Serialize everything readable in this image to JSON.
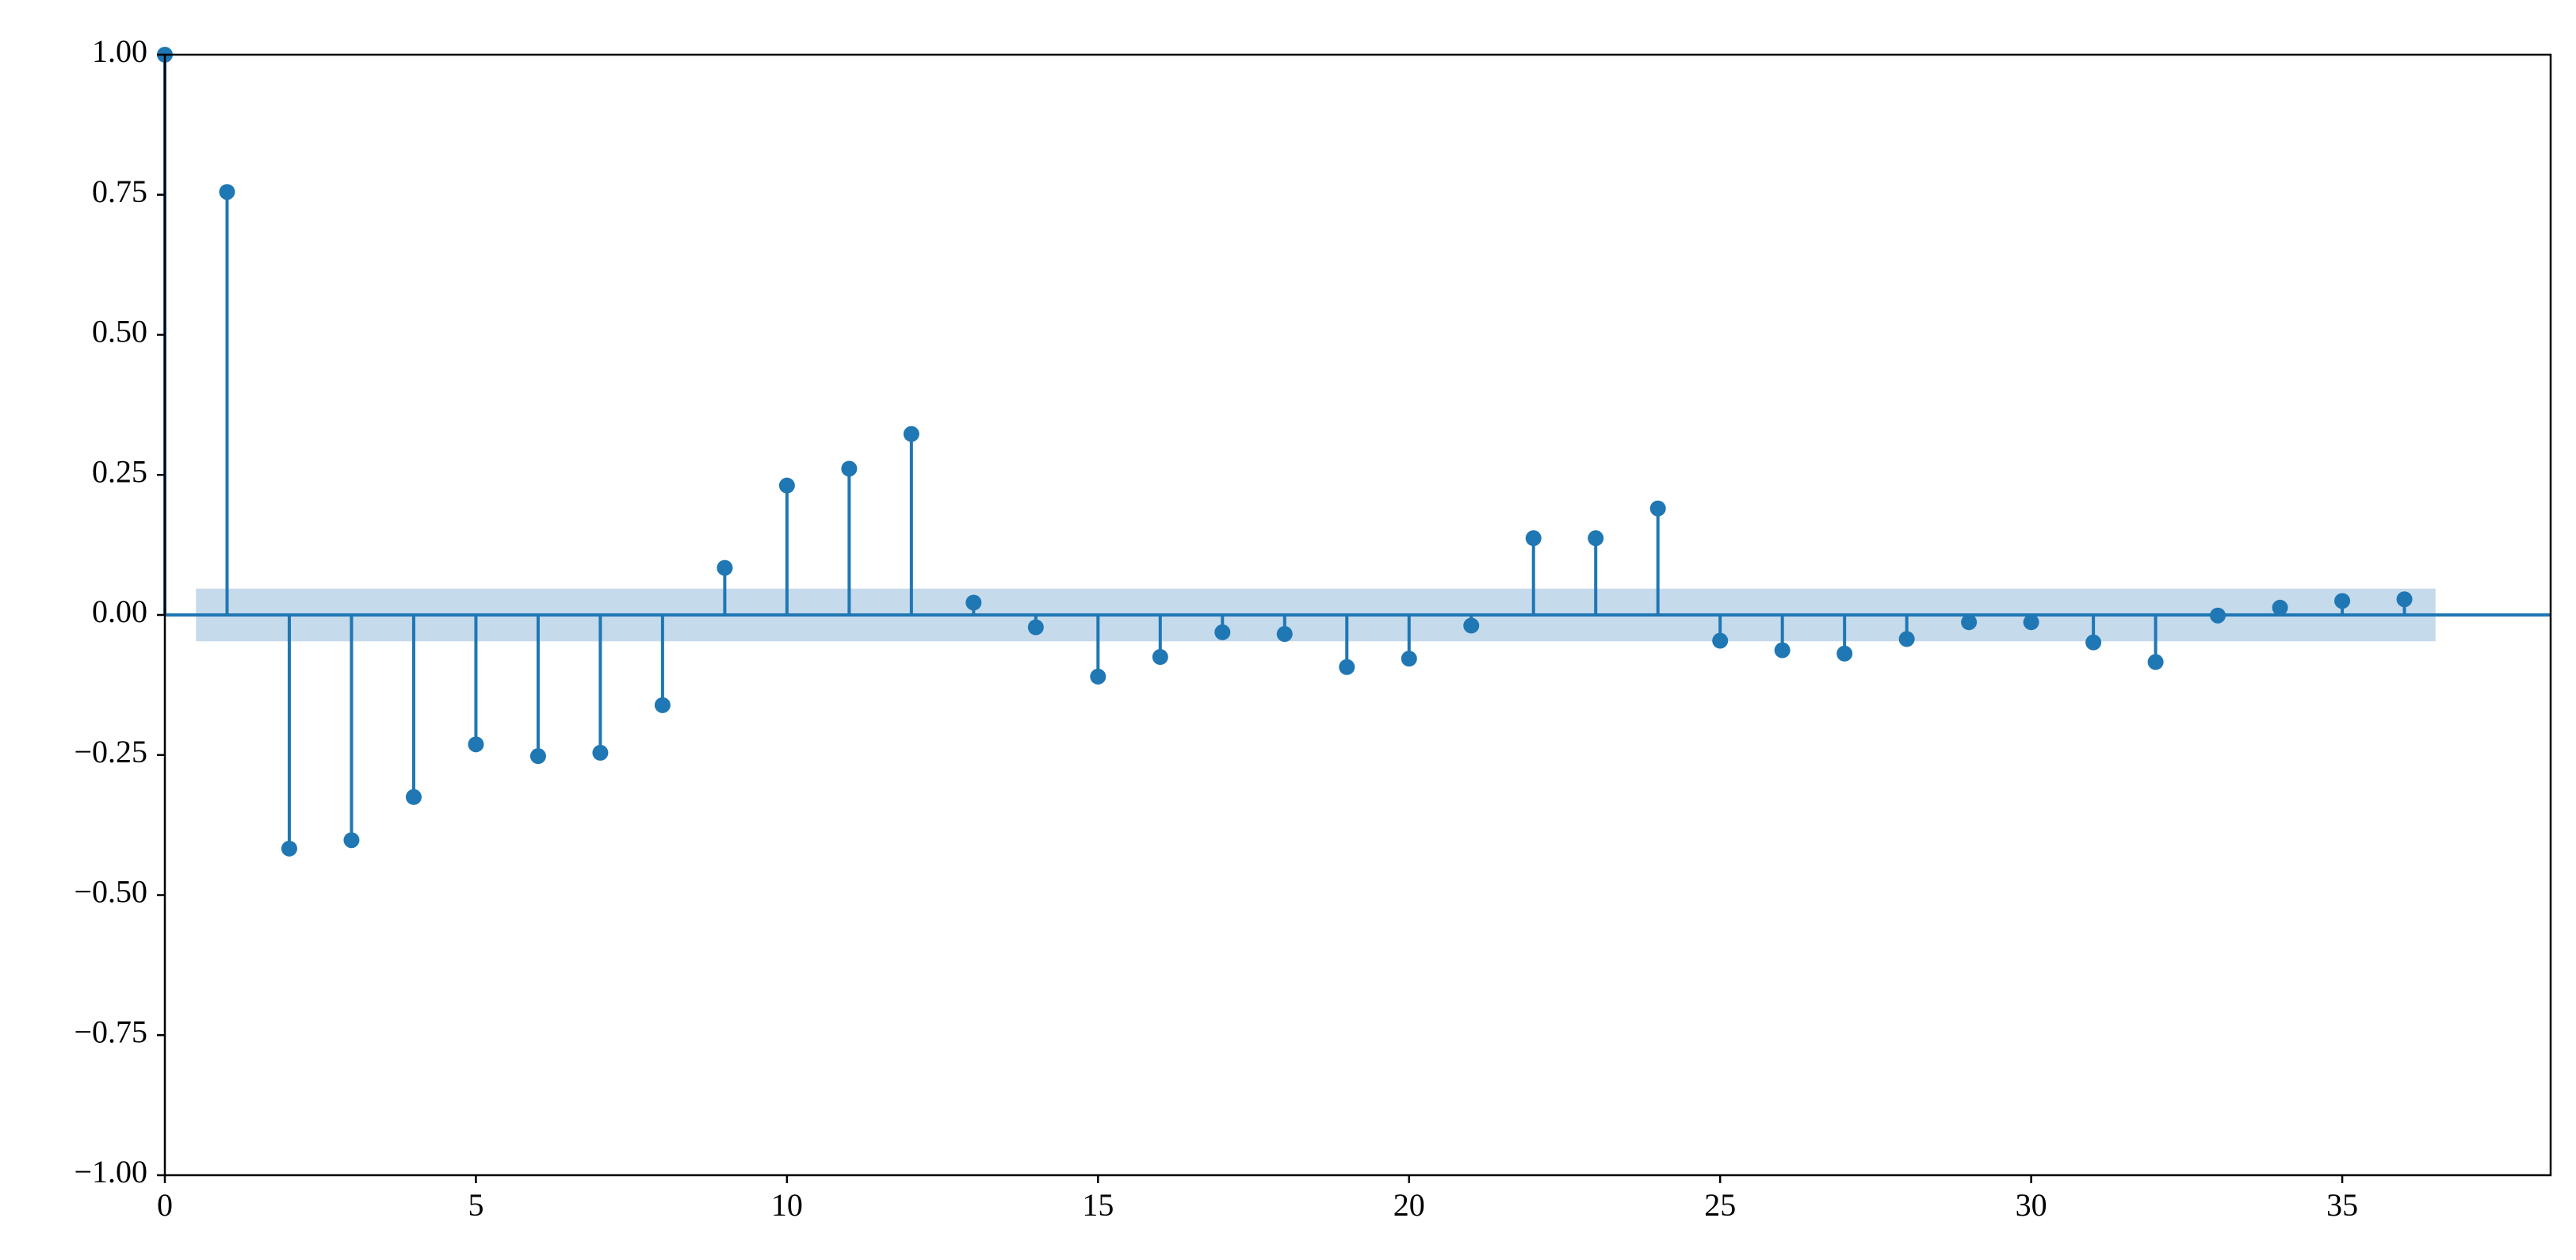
{
  "chart_data": {
    "type": "stem",
    "x": [
      0,
      1,
      2,
      3,
      4,
      5,
      6,
      7,
      8,
      9,
      10,
      11,
      12,
      13,
      14,
      15,
      16,
      17,
      18,
      19,
      20,
      21,
      22,
      23,
      24,
      25,
      26,
      27,
      28,
      29,
      30,
      31,
      32,
      33,
      34,
      35,
      36
    ],
    "values": [
      1.0,
      0.755,
      -0.417,
      -0.402,
      -0.325,
      -0.231,
      -0.252,
      -0.246,
      -0.161,
      0.084,
      0.231,
      0.261,
      0.323,
      0.022,
      -0.022,
      -0.11,
      -0.075,
      -0.031,
      -0.034,
      -0.093,
      -0.078,
      -0.019,
      0.137,
      0.137,
      0.19,
      -0.046,
      -0.063,
      -0.069,
      -0.043,
      -0.013,
      -0.013,
      -0.049,
      -0.084,
      -0.001,
      0.013,
      0.025,
      0.028
    ],
    "color": "#1f77b4",
    "confidence_band": {
      "x": [
        0.5,
        36.5
      ],
      "y": [
        -0.047,
        0.047
      ],
      "color": "#c5daeb"
    },
    "xlim": [
      0,
      38.35
    ],
    "xticks": [
      0,
      5,
      10,
      15,
      20,
      25,
      30,
      35
    ],
    "ylim": [
      -1,
      1
    ],
    "yticks": [
      {
        "value": -1,
        "label": "−1.00"
      },
      {
        "value": -0.75,
        "label": "−0.75"
      },
      {
        "value": -0.5,
        "label": "−0.50"
      },
      {
        "value": -0.25,
        "label": "−0.25"
      },
      {
        "value": 0,
        "label": "0.00"
      },
      {
        "value": 0.25,
        "label": "0.25"
      },
      {
        "value": 0.5,
        "label": "0.50"
      },
      {
        "value": 0.75,
        "label": "0.75"
      },
      {
        "value": 1,
        "label": "1.00"
      }
    ],
    "grid": false
  }
}
